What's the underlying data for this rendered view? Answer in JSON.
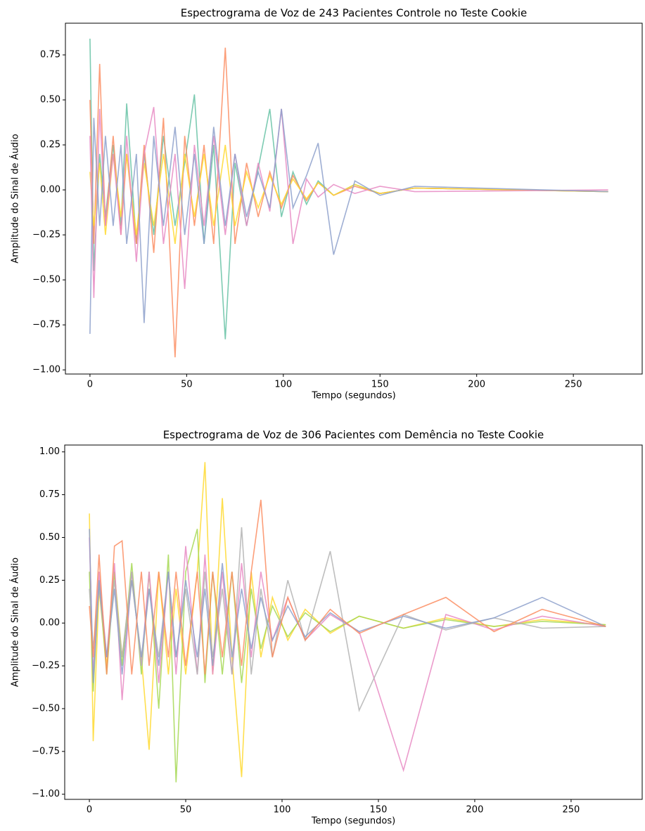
{
  "chart_data": [
    {
      "type": "line",
      "title": "Espectrograma de Voz de 243 Pacientes Controle no Teste Cookie",
      "x_label": "Tempo (segundos)",
      "y_label": "Amplitude do Sinal de Áudio",
      "xlim": [
        -12.7,
        285.6
      ],
      "ylim": [
        -1.023,
        0.926
      ],
      "xticks": [
        0,
        50,
        100,
        150,
        200,
        250
      ],
      "yticks": [
        {
          "value": -1.0,
          "label": "−1.00"
        },
        {
          "value": -0.75,
          "label": "−0.75"
        },
        {
          "value": -0.5,
          "label": "−0.50"
        },
        {
          "value": -0.25,
          "label": "−0.25"
        },
        {
          "value": 0.0,
          "label": "0.00"
        },
        {
          "value": 0.25,
          "label": "0.25"
        },
        {
          "value": 0.5,
          "label": "0.50"
        },
        {
          "value": 0.75,
          "label": "0.75"
        }
      ],
      "grid": false,
      "x": [
        0,
        2,
        5,
        8,
        12,
        16,
        19,
        24,
        28,
        33,
        38,
        44,
        49,
        54,
        59,
        64,
        70,
        75,
        81,
        87,
        93,
        99,
        105,
        112,
        118,
        126,
        137,
        150,
        168,
        268
      ],
      "series": [
        {
          "color": "#66c2a5",
          "values": [
            0.84,
            -0.45,
            0.2,
            -0.15,
            0.25,
            -0.2,
            0.48,
            -0.3,
            0.2,
            -0.25,
            0.3,
            -0.2,
            0.15,
            0.53,
            -0.3,
            0.25,
            -0.83,
            0.15,
            -0.2,
            0.12,
            0.45,
            -0.15,
            0.1,
            -0.08,
            0.05,
            -0.03,
            0.03,
            -0.02,
            0.01,
            -0.01
          ]
        },
        {
          "color": "#fc8d62",
          "values": [
            0.5,
            -0.3,
            0.7,
            -0.2,
            0.3,
            -0.25,
            0.2,
            -0.3,
            0.25,
            -0.35,
            0.4,
            -0.93,
            0.3,
            -0.2,
            0.25,
            -0.3,
            0.79,
            -0.3,
            0.15,
            -0.15,
            0.1,
            -0.1,
            0.08,
            -0.06,
            0.04,
            -0.03,
            0.02,
            -0.02,
            0.01,
            -0.01
          ]
        },
        {
          "color": "#ffd92f",
          "values": [
            0.1,
            -0.2,
            0.15,
            -0.25,
            0.2,
            -0.15,
            0.2,
            -0.25,
            0.15,
            -0.2,
            0.2,
            -0.3,
            0.2,
            -0.15,
            0.2,
            -0.2,
            0.25,
            -0.2,
            0.1,
            -0.1,
            0.08,
            -0.08,
            0.06,
            -0.05,
            0.04,
            -0.03,
            0.03,
            -0.02,
            0.01,
            -0.01
          ]
        },
        {
          "color": "#e78ac3",
          "values": [
            0.3,
            -0.6,
            0.45,
            -0.2,
            0.2,
            -0.25,
            0.3,
            -0.4,
            0.2,
            0.46,
            -0.3,
            0.2,
            -0.55,
            0.25,
            -0.2,
            0.3,
            -0.25,
            0.2,
            -0.2,
            0.15,
            -0.12,
            0.45,
            -0.3,
            0.06,
            -0.04,
            0.03,
            -0.02,
            0.02,
            -0.01,
            0
          ]
        },
        {
          "color": "#8da0cb",
          "values": [
            -0.8,
            0.4,
            -0.2,
            0.3,
            -0.2,
            0.25,
            -0.3,
            0.2,
            -0.74,
            0.3,
            -0.2,
            0.35,
            -0.25,
            0.2,
            -0.3,
            0.35,
            -0.2,
            0.2,
            -0.15,
            0.1,
            -0.1,
            0.45,
            -0.1,
            0.08,
            0.26,
            -0.36,
            0.05,
            -0.03,
            0.02,
            -0.01
          ]
        }
      ]
    },
    {
      "type": "line",
      "title": "Espectrograma de Voz de 306 Pacientes com Demência no Teste Cookie",
      "x_label": "Tempo (segundos)",
      "y_label": "Amplitude do Sinal de Áudio",
      "xlim": [
        -12.8,
        286.9
      ],
      "ylim": [
        -1.03,
        1.04
      ],
      "xticks": [
        0,
        50,
        100,
        150,
        200,
        250
      ],
      "yticks": [
        {
          "value": -1.0,
          "label": "−1.00"
        },
        {
          "value": -0.75,
          "label": "−0.75"
        },
        {
          "value": -0.5,
          "label": "−0.50"
        },
        {
          "value": -0.25,
          "label": "−0.25"
        },
        {
          "value": 0.0,
          "label": "0.00"
        },
        {
          "value": 0.25,
          "label": "0.25"
        },
        {
          "value": 0.5,
          "label": "0.50"
        },
        {
          "value": 0.75,
          "label": "0.75"
        },
        {
          "value": 1.0,
          "label": "1.00"
        }
      ],
      "grid": false,
      "x": [
        0,
        2,
        5,
        9,
        13,
        17,
        22,
        27,
        31,
        36,
        41,
        45,
        50,
        56,
        60,
        64,
        69,
        74,
        79,
        84,
        89,
        95,
        103,
        112,
        125,
        140,
        163,
        185,
        210,
        235,
        268
      ],
      "series": [
        {
          "color": "#ffd92f",
          "values": [
            0.64,
            -0.69,
            0.2,
            -0.25,
            0.3,
            -0.2,
            0.25,
            -0.2,
            -0.74,
            0.3,
            -0.3,
            0.2,
            -0.3,
            0.3,
            0.94,
            -0.3,
            0.73,
            -0.2,
            -0.9,
            0.3,
            -0.2,
            0.15,
            -0.1,
            0.08,
            -0.06,
            0.04,
            -0.03,
            0.03,
            -0.02,
            0.02,
            -0.01
          ]
        },
        {
          "color": "#a6d854",
          "values": [
            0.3,
            -0.4,
            0.25,
            -0.3,
            0.3,
            -0.25,
            0.35,
            -0.3,
            0.3,
            -0.5,
            0.4,
            -0.93,
            0.3,
            0.55,
            -0.35,
            0.3,
            -0.3,
            0.3,
            -0.35,
            0.2,
            -0.15,
            0.1,
            -0.08,
            0.06,
            -0.05,
            0.04,
            -0.03,
            0.02,
            -0.02,
            0.01,
            -0.01
          ]
        },
        {
          "color": "#e78ac3",
          "values": [
            0.5,
            -0.3,
            0.3,
            -0.2,
            0.35,
            -0.45,
            0.3,
            -0.25,
            0.3,
            -0.35,
            0.3,
            -0.3,
            0.45,
            -0.3,
            0.4,
            -0.3,
            0.3,
            -0.3,
            0.35,
            -0.2,
            0.3,
            -0.1,
            0.15,
            -0.1,
            0.05,
            -0.05,
            -0.86,
            0.05,
            -0.04,
            0.04,
            -0.02
          ]
        },
        {
          "color": "#b3b3b3",
          "values": [
            0.2,
            -0.15,
            0.2,
            -0.2,
            0.25,
            -0.2,
            0.3,
            -0.25,
            0.2,
            -0.2,
            0.3,
            -0.2,
            0.2,
            -0.3,
            0.3,
            -0.2,
            0.2,
            -0.3,
            0.56,
            -0.3,
            0.2,
            -0.2,
            0.25,
            -0.1,
            0.42,
            -0.51,
            0.05,
            -0.04,
            0.03,
            -0.03,
            -0.02
          ]
        },
        {
          "color": "#8da0cb",
          "values": [
            0.55,
            -0.35,
            0.25,
            -0.2,
            0.2,
            -0.3,
            0.25,
            -0.2,
            0.2,
            -0.25,
            0.3,
            -0.2,
            0.25,
            -0.2,
            0.2,
            -0.25,
            0.35,
            -0.2,
            0.2,
            -0.15,
            0.15,
            -0.1,
            0.1,
            -0.08,
            0.06,
            -0.05,
            0.04,
            -0.03,
            0.03,
            0.15,
            -0.02
          ]
        },
        {
          "color": "#fc8d62",
          "values": [
            0.1,
            -0.2,
            0.4,
            -0.3,
            0.45,
            0.48,
            -0.3,
            0.3,
            -0.25,
            0.3,
            -0.2,
            0.3,
            -0.25,
            0.3,
            -0.3,
            0.3,
            -0.2,
            0.3,
            -0.25,
            0.3,
            0.72,
            -0.2,
            0.15,
            -0.1,
            0.08,
            -0.06,
            0.05,
            0.15,
            -0.05,
            0.08,
            -0.02
          ]
        }
      ]
    }
  ]
}
